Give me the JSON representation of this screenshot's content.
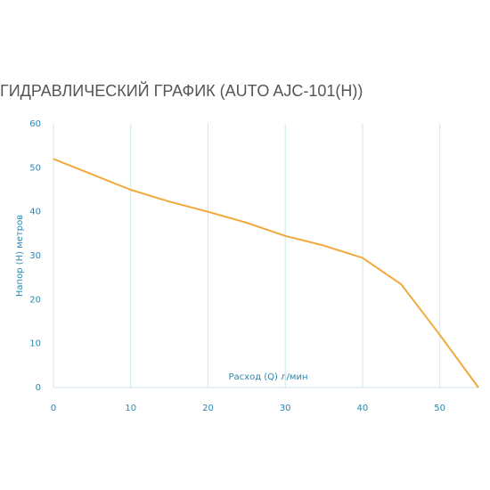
{
  "chart_data": {
    "type": "line",
    "title": "ГИДРАВЛИЧЕСКИЙ ГРАФИК (AUTO AJC-101(H))",
    "x_label": "Расход (Q) л/мин",
    "y_label": "Напор (H) метров",
    "x": [
      0,
      5,
      10,
      15,
      20,
      25,
      30,
      35,
      40,
      45,
      50,
      55
    ],
    "series": [
      {
        "name": "AUTO AJC-101(H)",
        "color": "#f2a93b",
        "values": [
          52,
          48.5,
          45,
          42.3,
          40,
          37.5,
          34.5,
          32.3,
          29.5,
          23.5,
          12,
          0
        ]
      }
    ],
    "xlim": [
      0,
      55
    ],
    "xticks": [
      0,
      10,
      20,
      30,
      40,
      50
    ],
    "ylim": [
      0,
      60
    ],
    "yticks": [
      0,
      10,
      20,
      30,
      40,
      50,
      60
    ],
    "grid": true
  }
}
